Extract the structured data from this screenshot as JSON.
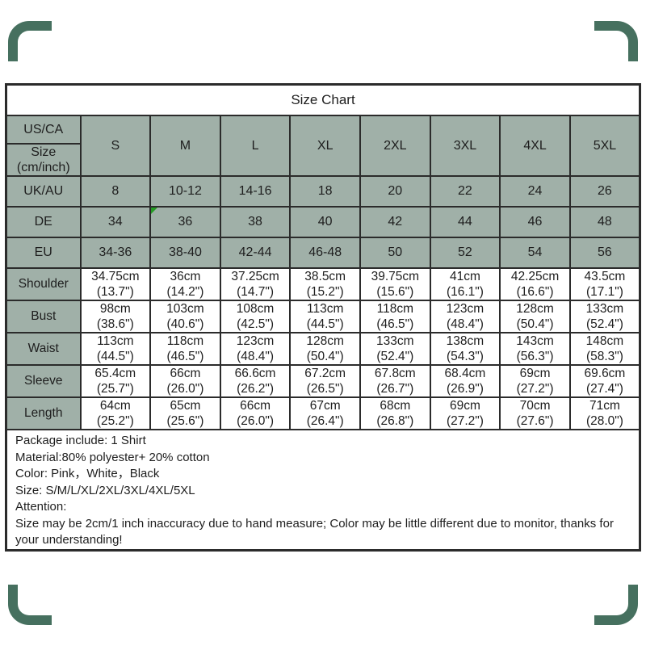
{
  "colors": {
    "cell_green": "#a0b0a8",
    "grid_border": "#2b2b2b",
    "text": "#1e1e1e",
    "comment_marker_green": "#249b24",
    "corner_decoration_green": "#46705f",
    "background": "#ffffff"
  },
  "table": {
    "title": "Size Chart",
    "corner_header_top": "US/CA",
    "corner_header_bottom_line1": "Size",
    "corner_header_bottom_line2": "(cm/inch)",
    "size_columns": [
      "S",
      "M",
      "L",
      "XL",
      "2XL",
      "3XL",
      "4XL",
      "5XL"
    ],
    "region_rows": [
      {
        "label": "UK/AU",
        "values": [
          "8",
          "10-12",
          "14-16",
          "18",
          "20",
          "22",
          "24",
          "26"
        ]
      },
      {
        "label": "DE",
        "values": [
          "34",
          "36",
          "38",
          "40",
          "42",
          "44",
          "46",
          "48"
        ],
        "comment_marker_col": 1
      },
      {
        "label": "EU",
        "values": [
          "34-36",
          "38-40",
          "42-44",
          "46-48",
          "50",
          "52",
          "54",
          "56"
        ]
      }
    ],
    "measurement_rows": [
      {
        "label": "Shoulder",
        "cm": [
          "34.75cm",
          "36cm",
          "37.25cm",
          "38.5cm",
          "39.75cm",
          "41cm",
          "42.25cm",
          "43.5cm"
        ],
        "inch": [
          "(13.7\")",
          "(14.2\")",
          "(14.7\")",
          "(15.2\")",
          "(15.6\")",
          "(16.1\")",
          "(16.6\")",
          "(17.1\")"
        ]
      },
      {
        "label": "Bust",
        "cm": [
          "98cm",
          "103cm",
          "108cm",
          "113cm",
          "118cm",
          "123cm",
          "128cm",
          "133cm"
        ],
        "inch": [
          "(38.6\")",
          "(40.6\")",
          "(42.5\")",
          "(44.5\")",
          "(46.5\")",
          "(48.4\")",
          "(50.4\")",
          "(52.4\")"
        ]
      },
      {
        "label": "Waist",
        "cm": [
          "113cm",
          "118cm",
          "123cm",
          "128cm",
          "133cm",
          "138cm",
          "143cm",
          "148cm"
        ],
        "inch": [
          "(44.5\")",
          "(46.5\")",
          "(48.4\")",
          "(50.4\")",
          "(52.4\")",
          "(54.3\")",
          "(56.3\")",
          "(58.3\")"
        ]
      },
      {
        "label": "Sleeve",
        "cm": [
          "65.4cm",
          "66cm",
          "66.6cm",
          "67.2cm",
          "67.8cm",
          "68.4cm",
          "69cm",
          "69.6cm"
        ],
        "inch": [
          "(25.7\")",
          "(26.0\")",
          "(26.2\")",
          "(26.5\")",
          "(26.7\")",
          "(26.9\")",
          "(27.2\")",
          "(27.4\")"
        ]
      },
      {
        "label": "Length",
        "cm": [
          "64cm",
          "65cm",
          "66cm",
          "67cm",
          "68cm",
          "69cm",
          "70cm",
          "71cm"
        ],
        "inch": [
          "(25.2\")",
          "(25.6\")",
          "(26.0\")",
          "(26.4\")",
          "(26.8\")",
          "(27.2\")",
          "(27.6\")",
          "(28.0\")"
        ]
      }
    ]
  },
  "notes": {
    "lines": [
      "Package include: 1 Shirt",
      "Material:80% polyester+ 20% cotton",
      "Color: Pink，White，Black",
      "Size: S/M/L/XL/2XL/3XL/4XL/5XL",
      "Attention:",
      "Size may be 2cm/1 inch inaccuracy due to hand measure; Color may be little different due to monitor, thanks for your understanding!"
    ]
  }
}
